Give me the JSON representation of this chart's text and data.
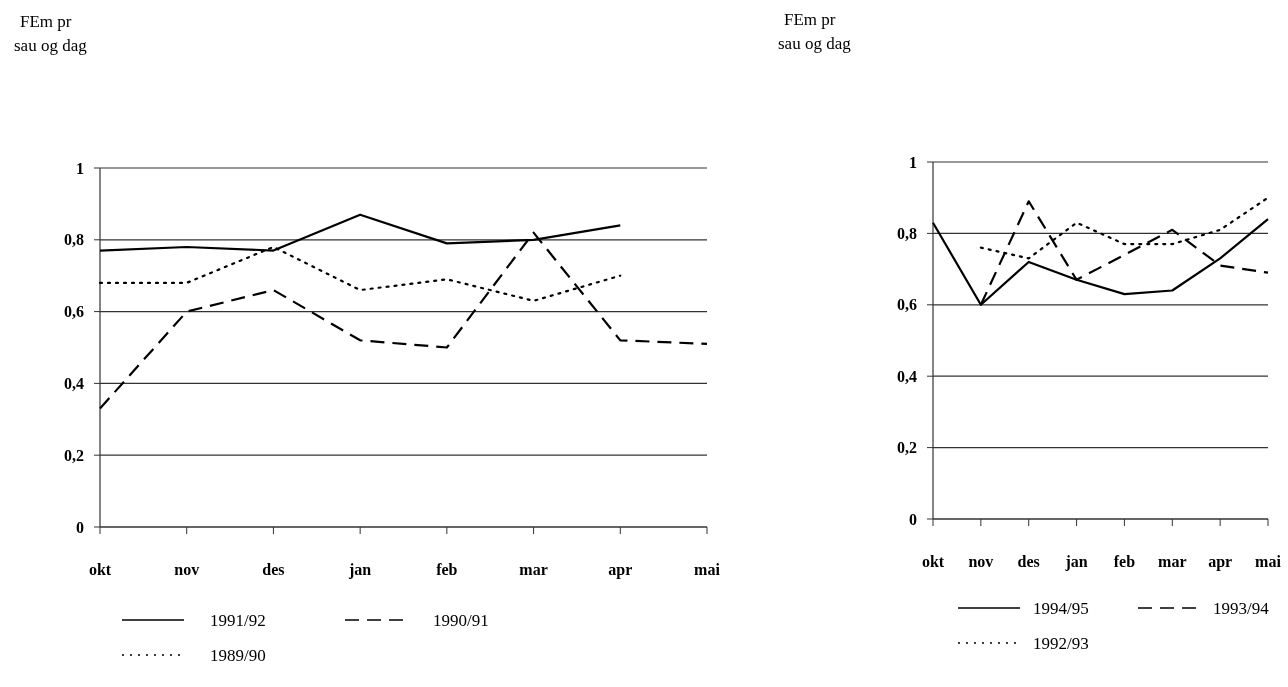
{
  "chart_data": [
    {
      "type": "line",
      "ylabel": "FEm pr\nsau og dag",
      "categories": [
        "okt",
        "nov",
        "des",
        "jan",
        "feb",
        "mar",
        "apr",
        "mai"
      ],
      "ylim": [
        0,
        1
      ],
      "yticks": [
        {
          "value": 0,
          "label": "0"
        },
        {
          "value": 0.2,
          "label": "0,2"
        },
        {
          "value": 0.4,
          "label": "0,4"
        },
        {
          "value": 0.6,
          "label": "0,6"
        },
        {
          "value": 0.8,
          "label": "0,8"
        },
        {
          "value": 1,
          "label": "1"
        }
      ],
      "grid": "y",
      "legend": "bottom",
      "marker": "none",
      "series": [
        {
          "name": "1991/92",
          "color": "#000000",
          "line_style": "solid",
          "values": [
            0.77,
            0.78,
            0.77,
            0.87,
            0.79,
            0.8,
            0.84,
            null
          ]
        },
        {
          "name": "1990/91",
          "color": "#000000",
          "line_style": "dashed",
          "values": [
            0.33,
            0.6,
            0.66,
            0.52,
            0.5,
            0.82,
            0.52,
            0.51
          ]
        },
        {
          "name": "1989/90",
          "color": "#000000",
          "line_style": "dotted",
          "values": [
            0.68,
            0.68,
            0.78,
            0.66,
            0.69,
            0.63,
            0.7,
            null
          ]
        }
      ]
    },
    {
      "type": "line",
      "ylabel": "FEm pr\nsau og dag",
      "categories": [
        "okt",
        "nov",
        "des",
        "jan",
        "feb",
        "mar",
        "apr",
        "mai"
      ],
      "ylim": [
        0,
        1
      ],
      "yticks": [
        {
          "value": 0,
          "label": "0"
        },
        {
          "value": 0.2,
          "label": "0,2"
        },
        {
          "value": 0.4,
          "label": "0,4"
        },
        {
          "value": 0.6,
          "label": "0,6"
        },
        {
          "value": 0.8,
          "label": "0,8"
        },
        {
          "value": 1,
          "label": "1"
        }
      ],
      "grid": "y",
      "legend": "bottom",
      "marker": "none",
      "series": [
        {
          "name": "1994/95",
          "color": "#000000",
          "line_style": "solid",
          "values": [
            0.83,
            0.6,
            0.72,
            0.67,
            0.63,
            0.64,
            0.73,
            0.84
          ]
        },
        {
          "name": "1993/94",
          "color": "#000000",
          "line_style": "dashed",
          "values": [
            null,
            0.6,
            0.89,
            0.67,
            0.74,
            0.81,
            0.71,
            0.69
          ]
        },
        {
          "name": "1992/93",
          "color": "#000000",
          "line_style": "dotted",
          "values": [
            null,
            0.76,
            0.73,
            0.83,
            0.77,
            0.77,
            0.81,
            0.9
          ]
        }
      ]
    }
  ]
}
